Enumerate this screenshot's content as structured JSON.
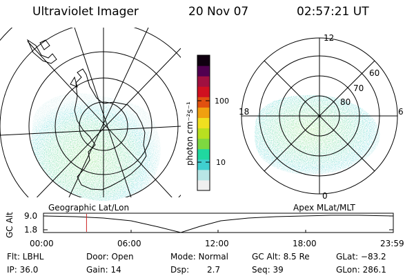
{
  "header": {
    "instrument": "Ultraviolet Imager",
    "date": "20 Nov 07",
    "time": "02:57:21 UT"
  },
  "geo_map": {
    "caption": "Geographic Lat/Lon"
  },
  "apex_map": {
    "caption": "Apex MLat/MLT",
    "mlt_labels": {
      "top": "12",
      "left": "18",
      "right": "6",
      "bottom": "0"
    },
    "lat_labels": [
      "60",
      "70",
      "80"
    ]
  },
  "colorbar": {
    "label": "photon cm⁻²s⁻¹",
    "ticks": [
      "100",
      "10"
    ],
    "colors": [
      "#f0f0f0",
      "#b8e6e6",
      "#40d0d0",
      "#20d8a0",
      "#7ed840",
      "#b8e020",
      "#f0e020",
      "#f0a010",
      "#e05010",
      "#d01020",
      "#a01040",
      "#500050",
      "#100010"
    ]
  },
  "timeline": {
    "ylabel": "GC Alt",
    "y_ticks": [
      "9.0",
      "1.8"
    ],
    "x_ticks": [
      "00:00",
      "06:00",
      "12:00",
      "18:00",
      "23:59"
    ],
    "marker_time": "02:57",
    "marker_color": "#cc2020"
  },
  "info": {
    "filter": "Flt: LBHL",
    "ip": "IP: 36.0",
    "door": "Door: Open",
    "gain": "Gain: 14",
    "mode": "Mode: Normal",
    "dsp_label": "Dsp:",
    "dsp_value": "2.7",
    "gc_alt": "GC Alt: 8.5 Re",
    "seq": "Seq: 39",
    "glat": "GLat: −83.2",
    "glon": "GLon: 286.1"
  }
}
